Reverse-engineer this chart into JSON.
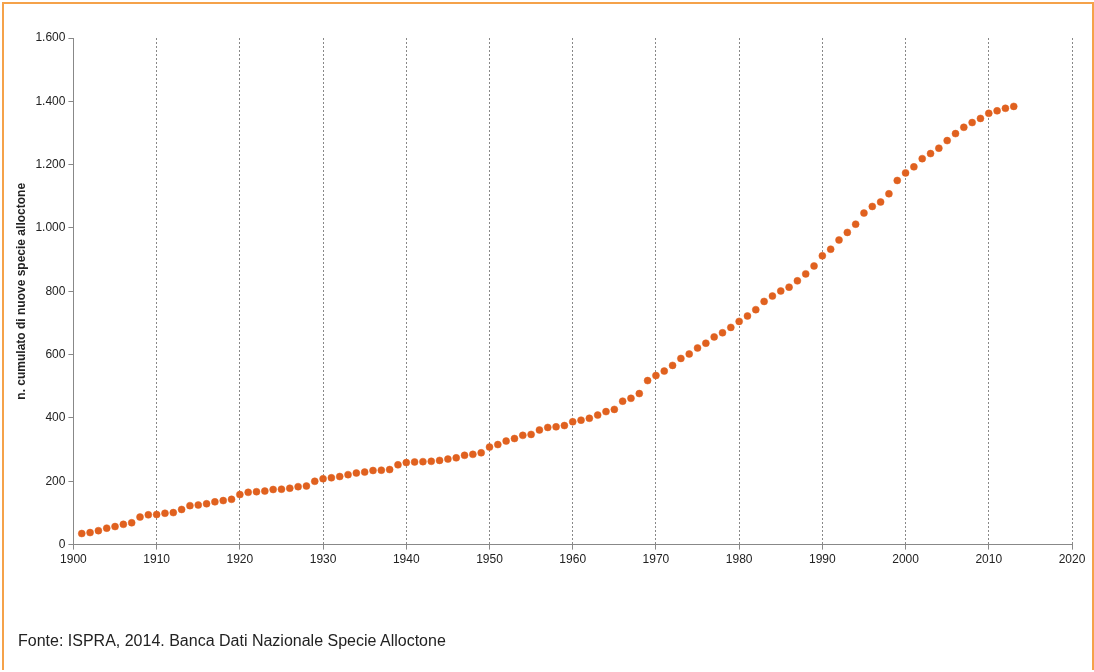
{
  "chart_data": {
    "type": "scatter",
    "ylabel": "n. cumulato di nuove specie alloctone",
    "annotations": [
      "Fonte: ISPRA, 2014. Banca Dati Nazionale Specie Alloctone"
    ],
    "x": [
      1901,
      1902,
      1903,
      1904,
      1905,
      1906,
      1907,
      1908,
      1909,
      1910,
      1911,
      1912,
      1913,
      1914,
      1915,
      1916,
      1917,
      1918,
      1919,
      1920,
      1921,
      1922,
      1923,
      1924,
      1925,
      1926,
      1927,
      1928,
      1929,
      1930,
      1931,
      1932,
      1933,
      1934,
      1935,
      1936,
      1937,
      1938,
      1939,
      1940,
      1941,
      1942,
      1943,
      1944,
      1945,
      1946,
      1947,
      1948,
      1949,
      1950,
      1951,
      1952,
      1953,
      1954,
      1955,
      1956,
      1957,
      1958,
      1959,
      1960,
      1961,
      1962,
      1963,
      1964,
      1965,
      1966,
      1967,
      1968,
      1969,
      1970,
      1971,
      1972,
      1973,
      1974,
      1975,
      1976,
      1977,
      1978,
      1979,
      1980,
      1981,
      1982,
      1983,
      1984,
      1985,
      1986,
      1987,
      1988,
      1989,
      1990,
      1991,
      1992,
      1993,
      1994,
      1995,
      1996,
      1997,
      1998,
      1999,
      2000,
      2001,
      2002,
      2003,
      2004,
      2005,
      2006,
      2007,
      2008,
      2009,
      2010,
      2011,
      2012,
      2013
    ],
    "values": [
      35,
      38,
      44,
      52,
      57,
      64,
      69,
      87,
      94,
      95,
      99,
      101,
      111,
      123,
      125,
      129,
      135,
      139,
      143,
      158,
      165,
      167,
      169,
      174,
      175,
      178,
      183,
      185,
      200,
      208,
      211,
      215,
      221,
      226,
      229,
      234,
      235,
      237,
      252,
      259,
      261,
      262,
      263,
      266,
      270,
      274,
      282,
      285,
      290,
      308,
      316,
      327,
      335,
      345,
      348,
      362,
      370,
      372,
      376,
      388,
      393,
      399,
      409,
      420,
      427,
      453,
      462,
      477,
      518,
      534,
      548,
      566,
      588,
      602,
      621,
      636,
      656,
      669,
      686,
      705,
      722,
      742,
      768,
      785,
      801,
      813,
      833,
      855,
      880,
      912,
      933,
      962,
      986,
      1012,
      1047,
      1068,
      1082,
      1108,
      1150,
      1174,
      1193,
      1219,
      1235,
      1252,
      1276,
      1298,
      1318,
      1333,
      1346,
      1362,
      1370,
      1378,
      1384
    ],
    "color": "#e0611f",
    "marker": "circle",
    "grid": "x",
    "xlim": [
      1900,
      2020
    ],
    "xticks": [
      1900,
      1910,
      1920,
      1930,
      1940,
      1950,
      1960,
      1970,
      1980,
      1990,
      2000,
      2010,
      2020
    ],
    "ylim": [
      0,
      1600
    ],
    "yticks": [
      0,
      200,
      400,
      600,
      800,
      {
        "value": 1000,
        "label": "1.000"
      },
      {
        "value": 1200,
        "label": "1.200"
      },
      {
        "value": 1400,
        "label": "1.400"
      },
      {
        "value": 1600,
        "label": "1.600"
      }
    ]
  }
}
